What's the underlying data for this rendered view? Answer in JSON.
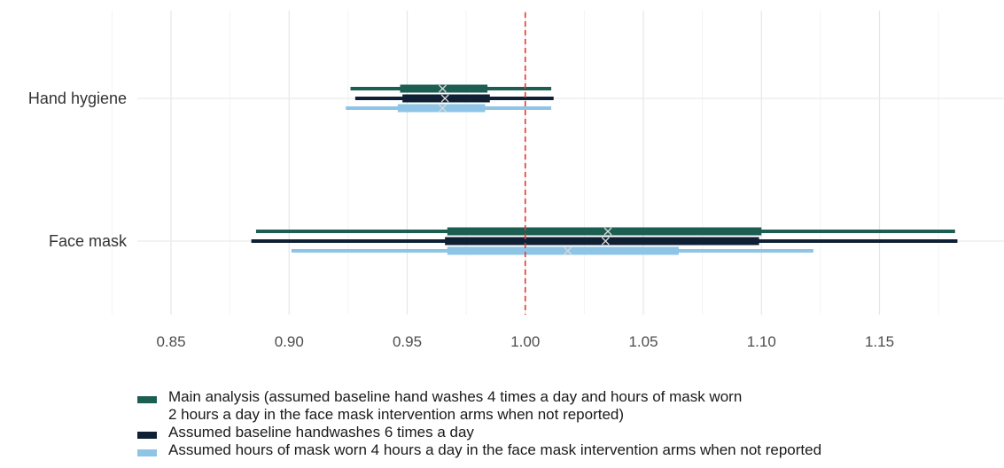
{
  "chart_data": {
    "type": "forest",
    "categories": [
      "Hand hygiene",
      "Face mask"
    ],
    "x_ticks": [
      "0.85",
      "0.90",
      "0.95",
      "1.00",
      "1.05",
      "1.10",
      "1.15"
    ],
    "xlim": [
      0.84,
      1.185
    ],
    "reference_line": 1.0,
    "reference_line_color": "#e8372c",
    "grid": true,
    "legend_position": "bottom",
    "series": [
      {
        "name": "Main analysis (assumed baseline hand washes 4 times a day and hours of mask worn\n2 hours a day in the face mask intervention arms when not reported)",
        "color": "#1d5e52",
        "points": [
          {
            "category": "Hand hygiene",
            "low": 0.926,
            "inner_low": 0.947,
            "estimate": 0.965,
            "inner_high": 0.984,
            "high": 1.011
          },
          {
            "category": "Face mask",
            "low": 0.886,
            "inner_low": 0.967,
            "estimate": 1.035,
            "inner_high": 1.1,
            "high": 1.182
          }
        ]
      },
      {
        "name": "Assumed baseline handwashes 6 times a day",
        "color": "#0f2035",
        "points": [
          {
            "category": "Hand hygiene",
            "low": 0.928,
            "inner_low": 0.948,
            "estimate": 0.966,
            "inner_high": 0.985,
            "high": 1.012
          },
          {
            "category": "Face mask",
            "low": 0.884,
            "inner_low": 0.966,
            "estimate": 1.034,
            "inner_high": 1.099,
            "high": 1.183
          }
        ]
      },
      {
        "name": "Assumed hours of mask worn 4 hours a day in the face mask intervention arms when not reported",
        "color": "#8ec5e6",
        "points": [
          {
            "category": "Hand hygiene",
            "low": 0.924,
            "inner_low": 0.946,
            "estimate": 0.965,
            "inner_high": 0.983,
            "high": 1.011
          },
          {
            "category": "Face mask",
            "low": 0.901,
            "inner_low": 0.967,
            "estimate": 1.018,
            "inner_high": 1.065,
            "high": 1.122
          }
        ]
      }
    ]
  }
}
